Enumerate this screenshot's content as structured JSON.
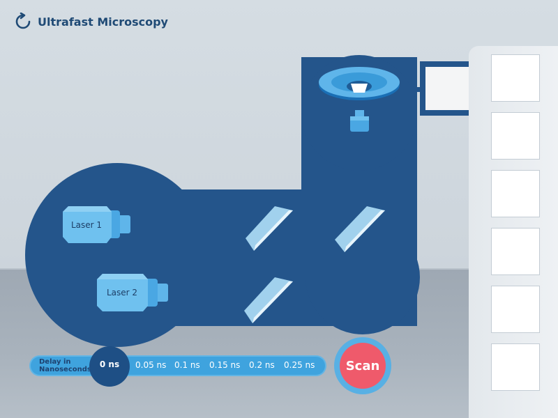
{
  "header": {
    "title": "Ultrafast Microscopy",
    "reset_icon": "reset-icon"
  },
  "lasers": [
    {
      "label": "Laser 1"
    },
    {
      "label": "Laser 2"
    }
  ],
  "delay": {
    "label_line1": "Delay in",
    "label_line2": "Nanoseconds",
    "selected": "0 ns",
    "options": [
      "0.05 ns",
      "0.1 ns",
      "0.15 ns",
      "0.2 ns",
      "0.25 ns"
    ]
  },
  "scan": {
    "label": "Scan"
  },
  "colors": {
    "table": "#24558b",
    "accent": "#3fa3de",
    "scan": "#ef5a6b",
    "title": "#1f4a75"
  }
}
